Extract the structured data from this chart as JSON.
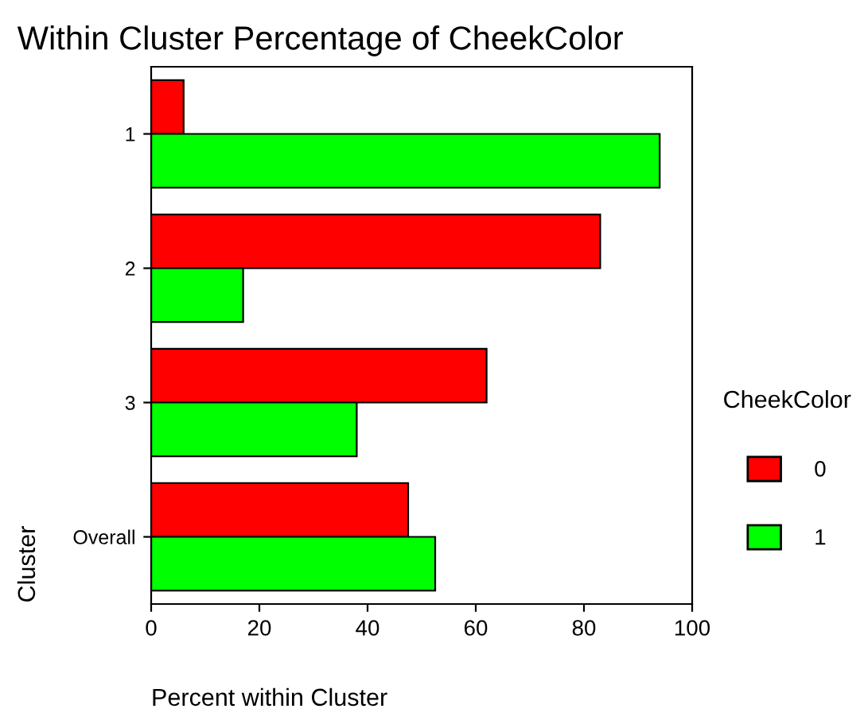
{
  "chart_data": {
    "type": "bar",
    "orientation": "horizontal",
    "title": "Within Cluster Percentage of CheekColor",
    "xlabel": "Percent within Cluster",
    "ylabel": "Cluster",
    "legend_title": "CheekColor",
    "categories": [
      "1",
      "2",
      "3",
      "Overall"
    ],
    "series": [
      {
        "name": "0",
        "color": "#ff0000",
        "values": [
          6,
          83,
          62,
          47.5
        ]
      },
      {
        "name": "1",
        "color": "#00ff00",
        "values": [
          94,
          17,
          38,
          52.5
        ]
      }
    ],
    "xlim": [
      0,
      100
    ],
    "xticks": [
      0,
      20,
      40,
      60,
      80,
      100
    ],
    "grid": false,
    "legend": "right"
  }
}
